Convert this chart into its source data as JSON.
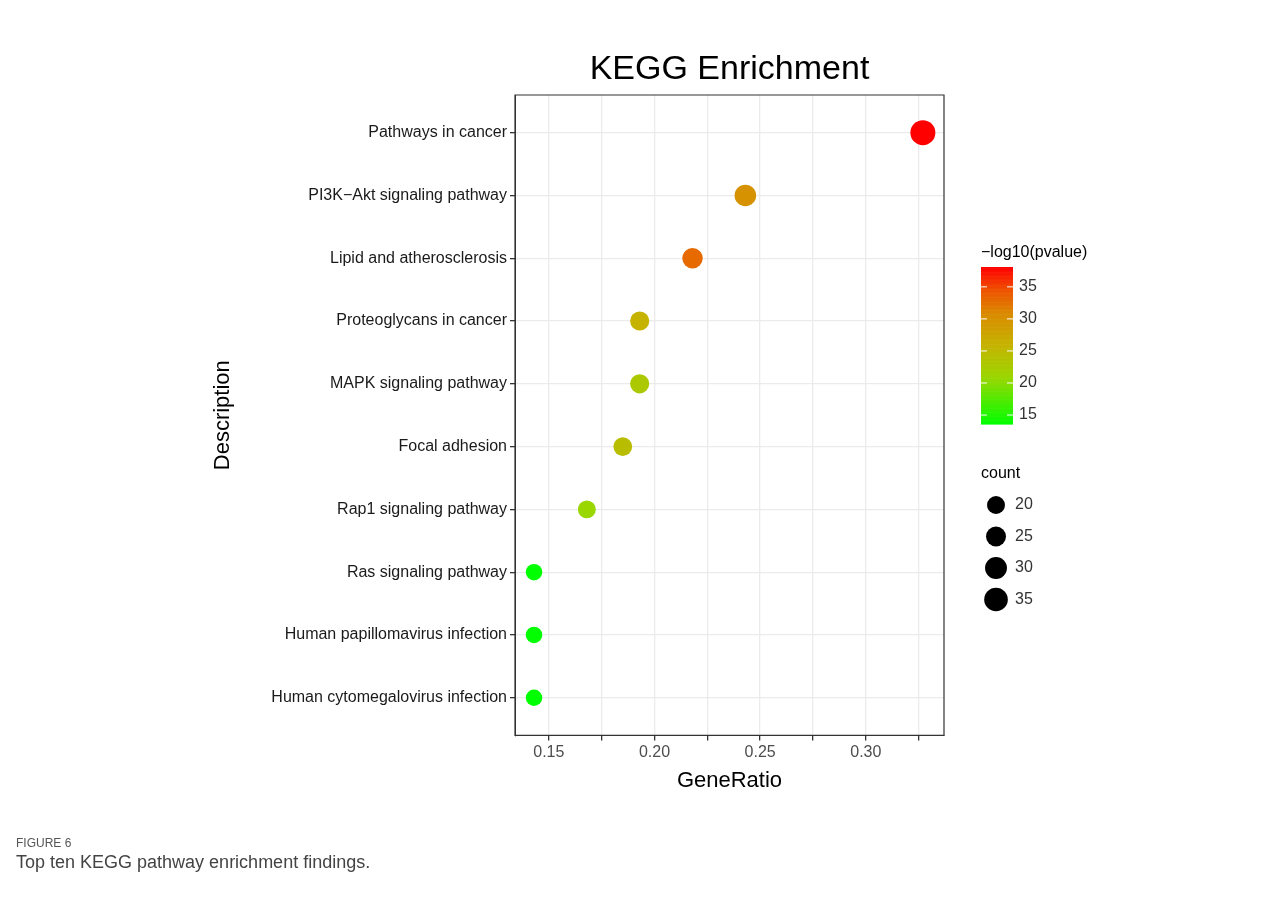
{
  "chart_data": {
    "type": "bubble",
    "orientation": "horizontal",
    "title": "KEGG Enrichment",
    "xlabel": "GeneRatio",
    "ylabel": "Description",
    "clabel": "−log10(pvalue)",
    "legend_title": "count",
    "categories": [
      "Pathways in cancer",
      "PI3K−Akt signaling pathway",
      "Lipid and atherosclerosis",
      "Proteoglycans in cancer",
      "MAPK signaling pathway",
      "Focal adhesion",
      "Rap1 signaling pathway",
      "Ras signaling pathway",
      "Human papillomavirus infection",
      "Human cytomegalovirus infection"
    ],
    "values": [
      0.327,
      0.243,
      0.218,
      0.193,
      0.193,
      0.185,
      0.168,
      0.143,
      0.143,
      0.143
    ],
    "sizes": [
      39,
      29,
      26,
      23,
      23,
      22,
      20,
      17,
      17,
      17
    ],
    "cvalues": [
      38.1,
      30,
      33,
      26,
      23,
      24.5,
      21,
      13.6,
      13.7,
      13.6
    ],
    "size_legend": [
      20,
      25,
      30,
      35
    ],
    "clim": [
      13.6,
      38.1
    ],
    "cticks": [
      15,
      20,
      25,
      30,
      35
    ],
    "xlim": [
      0.134,
      0.337
    ],
    "xticks": [
      0.15,
      {
        "value": 0.175,
        "label": null
      },
      {
        "value": 0.2,
        "label": "0.20"
      },
      {
        "value": 0.225,
        "label": null
      },
      0.25,
      {
        "value": 0.275,
        "label": null
      },
      {
        "value": 0.3,
        "label": "0.30"
      },
      {
        "value": 0.325,
        "label": null
      }
    ],
    "grid": true,
    "annotations": [
      "FIGURE 6",
      "Top ten KEGG pathway enrichment findings."
    ]
  }
}
